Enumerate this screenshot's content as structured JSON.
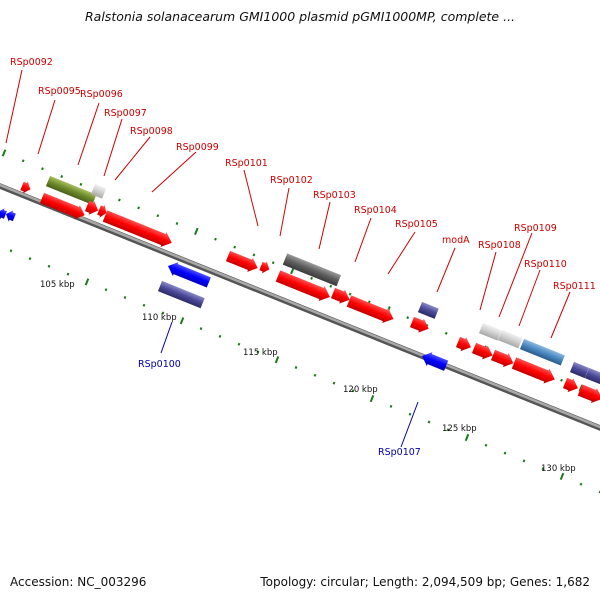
{
  "header": {
    "title": "Ralstonia solanacearum GMI1000 plasmid pGMI1000MP, complete ..."
  },
  "footer": {
    "accession": "Accession: NC_003296",
    "summary": "Topology: circular; Length: 2,094,509 bp; Genes: 1,682"
  },
  "colors": {
    "forward_gene": "#ff0000",
    "reverse_gene": "#0000ff",
    "forward_label": "#cc0000",
    "reverse_label": "#0000aa",
    "backbone": "#888888",
    "tick": "#1a7a1a"
  },
  "scale": {
    "unit": "kbp",
    "labels": [
      "105 kbp",
      "110 kbp",
      "115 kbp",
      "120 kbp",
      "125 kbp",
      "130 kbp"
    ]
  },
  "genes": [
    {
      "label": "RSp0092",
      "strand": "forward"
    },
    {
      "label": "RSp0095",
      "strand": "forward"
    },
    {
      "label": "RSp0096",
      "strand": "forward"
    },
    {
      "label": "RSp0097",
      "strand": "forward"
    },
    {
      "label": "RSp0098",
      "strand": "forward"
    },
    {
      "label": "RSp0099",
      "strand": "forward"
    },
    {
      "label": "RSp0100",
      "strand": "reverse"
    },
    {
      "label": "RSp0101",
      "strand": "forward"
    },
    {
      "label": "RSp0102",
      "strand": "forward"
    },
    {
      "label": "RSp0103",
      "strand": "forward"
    },
    {
      "label": "RSp0104",
      "strand": "forward"
    },
    {
      "label": "RSp0105",
      "strand": "forward"
    },
    {
      "label": "modA",
      "strand": "forward"
    },
    {
      "label": "RSp0107",
      "strand": "reverse"
    },
    {
      "label": "RSp0108",
      "strand": "forward"
    },
    {
      "label": "RSp0109",
      "strand": "forward"
    },
    {
      "label": "RSp0110",
      "strand": "forward"
    },
    {
      "label": "RSp0111",
      "strand": "forward"
    }
  ]
}
